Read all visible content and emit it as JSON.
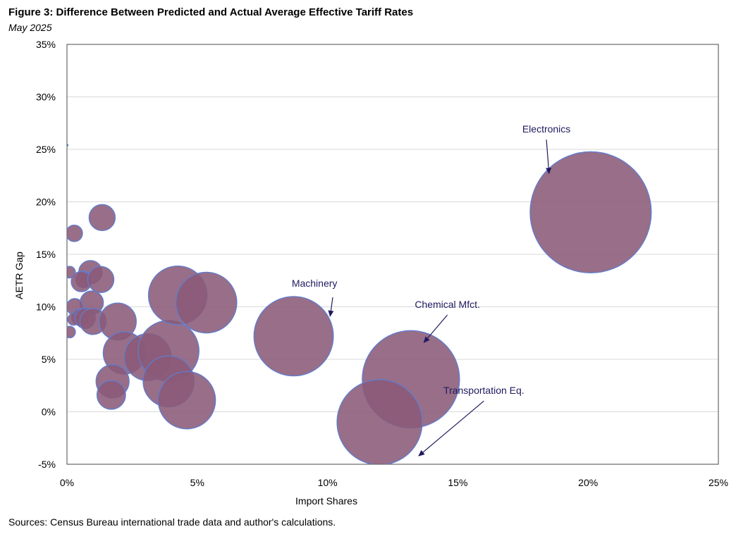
{
  "title": "Figure 3: Difference Between Predicted and Actual Average Effective Tariff Rates",
  "subtitle": "May 2025",
  "source": "Sources: Census Bureau international trade data and author's calculations.",
  "chart_data": {
    "type": "scatter",
    "variant": "bubble",
    "xlabel": "Import Shares",
    "ylabel": "AETR Gap",
    "xlim": [
      0,
      25
    ],
    "ylim": [
      -5,
      35
    ],
    "x_ticks": [
      "0%",
      "5%",
      "10%",
      "15%",
      "20%",
      "25%"
    ],
    "y_ticks": [
      "-5%",
      "0%",
      "5%",
      "10%",
      "15%",
      "20%",
      "25%",
      "30%",
      "35%"
    ],
    "grid": "horizontal",
    "bubble_fill": "#8a5a78",
    "bubble_edge": "#5b7fd6",
    "points": [
      {
        "x": 0.0,
        "y": 25.4,
        "size": 0.0
      },
      {
        "x": 0.28,
        "y": 17.0,
        "size": 0.2
      },
      {
        "x": 1.35,
        "y": 18.5,
        "size": 0.5
      },
      {
        "x": 0.1,
        "y": 13.3,
        "size": 0.1
      },
      {
        "x": 0.9,
        "y": 13.3,
        "size": 0.4
      },
      {
        "x": 0.65,
        "y": 12.6,
        "size": 0.2
      },
      {
        "x": 0.55,
        "y": 12.4,
        "size": 0.3
      },
      {
        "x": 1.3,
        "y": 12.6,
        "size": 0.5
      },
      {
        "x": 0.95,
        "y": 10.4,
        "size": 0.4
      },
      {
        "x": 0.3,
        "y": 10.0,
        "size": 0.2
      },
      {
        "x": 0.5,
        "y": 9.0,
        "size": 0.2
      },
      {
        "x": 0.25,
        "y": 8.8,
        "size": 0.1
      },
      {
        "x": 0.7,
        "y": 8.9,
        "size": 0.3
      },
      {
        "x": 1.0,
        "y": 8.6,
        "size": 0.5
      },
      {
        "x": 1.95,
        "y": 8.6,
        "size": 1.0
      },
      {
        "x": 0.1,
        "y": 7.6,
        "size": 0.1
      },
      {
        "x": 2.2,
        "y": 5.6,
        "size": 1.3
      },
      {
        "x": 3.1,
        "y": 5.2,
        "size": 1.6
      },
      {
        "x": 3.9,
        "y": 5.8,
        "size": 2.7
      },
      {
        "x": 1.75,
        "y": 2.9,
        "size": 0.8
      },
      {
        "x": 1.7,
        "y": 1.6,
        "size": 0.6
      },
      {
        "x": 3.9,
        "y": 2.9,
        "size": 1.9
      },
      {
        "x": 4.6,
        "y": 1.1,
        "size": 2.4
      },
      {
        "x": 4.25,
        "y": 11.1,
        "size": 2.5
      },
      {
        "x": 5.35,
        "y": 10.4,
        "size": 2.7
      },
      {
        "x": 8.7,
        "y": 7.2,
        "size": 4.6,
        "label": "Machinery"
      },
      {
        "x": 13.2,
        "y": 3.1,
        "size": 6.9,
        "label": "Chemical Mfct."
      },
      {
        "x": 12.0,
        "y": -1.0,
        "size": 5.3,
        "label": "Transportation Eq."
      },
      {
        "x": 20.1,
        "y": 19.0,
        "size": 10.7,
        "label": "Electronics"
      }
    ],
    "annotations": [
      {
        "text": "Electronics",
        "text_x": 18.4,
        "text_y": 26.6,
        "arrow_to_x": 18.5,
        "arrow_to_y": 22.7
      },
      {
        "text": "Machinery",
        "text_x": 9.5,
        "text_y": 11.9,
        "arrow_from_x": 10.2,
        "arrow_from_y": 10.9,
        "arrow_to_x": 10.1,
        "arrow_to_y": 9.1
      },
      {
        "text": "Chemical Mfct.",
        "text_x": 14.6,
        "text_y": 9.9,
        "arrow_to_x": 13.7,
        "arrow_to_y": 6.6
      },
      {
        "text": "Transportation Eq.",
        "text_x": 16.0,
        "text_y": 1.7,
        "arrow_to_x": 13.5,
        "arrow_to_y": -4.2
      }
    ]
  }
}
